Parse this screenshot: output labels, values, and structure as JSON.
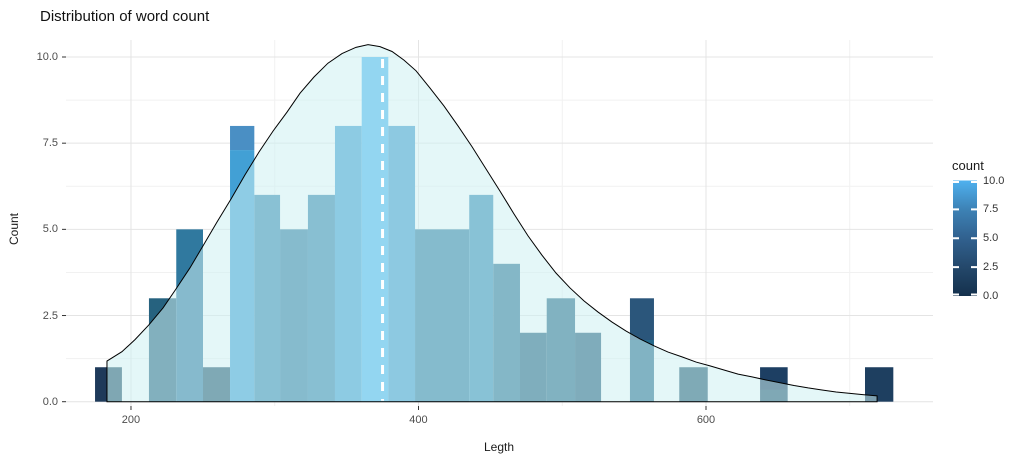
{
  "title": "Distribution of word count",
  "x_axis": {
    "title": "Legth",
    "domain": [
      154.8,
      757.9
    ],
    "ticks": [
      {
        "label": "200",
        "value": 200
      },
      {
        "label": "400",
        "value": 400
      },
      {
        "label": "600",
        "value": 600
      }
    ],
    "minor_ticks": [
      300,
      500,
      700
    ]
  },
  "y_axis": {
    "title": "Count",
    "domain": [
      0,
      10.0
    ],
    "ticks": [
      {
        "label": "0.0",
        "value": 0
      },
      {
        "label": "2.5",
        "value": 2.5
      },
      {
        "label": "5.0",
        "value": 5
      },
      {
        "label": "7.5",
        "value": 7.5
      },
      {
        "label": "10.0",
        "value": 10
      }
    ],
    "minor_ticks": [
      1.25,
      3.75,
      6.25,
      8.75
    ]
  },
  "legend": {
    "title": "count",
    "labels": [
      {
        "label": "10.0",
        "value": 10
      },
      {
        "label": "7.5",
        "value": 7.5
      },
      {
        "label": "5.0",
        "value": 5
      },
      {
        "label": "2.5",
        "value": 2.5
      },
      {
        "label": "0.0",
        "value": 0
      }
    ],
    "gradient_top_to_bottom": [
      "#4fb1ef",
      "#3d82b5",
      "#31618f",
      "#24486b",
      "#14304c"
    ]
  },
  "colors": {
    "background": "#ffffff",
    "grid_major": "#e4e4e4",
    "grid_minor": "#f1f1f1",
    "curve_stroke": "#000000",
    "curve_fill": "rgba(205,240,243,0.55)",
    "mean_line": "#ffffff",
    "tick_mark": "#333333"
  },
  "chart_data": {
    "type": "bar",
    "subtype": "histogram-with-density",
    "title": "Distribution of word count",
    "xlabel": "Legth",
    "ylabel": "Count",
    "xlim": [
      154.8,
      757.9
    ],
    "ylim": [
      0,
      10.5
    ],
    "mean_line_value": 375,
    "bins": [
      {
        "x0": 175.0,
        "x1": 183.3,
        "count": 1,
        "color": "#1e3a5a"
      },
      {
        "x0": 183.3,
        "x1": 193.7,
        "count": 1,
        "color": "#1f4e66"
      },
      {
        "x0": 212.5,
        "x1": 231.5,
        "count": 3,
        "color": "#26627f"
      },
      {
        "x0": 231.5,
        "x1": 250.1,
        "count": 5,
        "color": "#30799f"
      },
      {
        "x0": 250.1,
        "x1": 268.9,
        "count": 1,
        "color": "#20526b"
      },
      {
        "x0": 268.9,
        "x1": 285.8,
        "count": 8,
        "color": "#42a0d5",
        "color_top": "#4a8fc4",
        "split": 7.3
      },
      {
        "x0": 285.8,
        "x1": 303.7,
        "count": 6,
        "color": "#3587b0"
      },
      {
        "x0": 303.7,
        "x1": 323.1,
        "count": 5,
        "color": "#2f7aa1"
      },
      {
        "x0": 323.1,
        "x1": 341.9,
        "count": 6,
        "color": "#3384ac"
      },
      {
        "x0": 341.9,
        "x1": 360.5,
        "count": 8,
        "color": "#3f9dd1"
      },
      {
        "x0": 360.5,
        "x1": 379.0,
        "count": 10,
        "color": "#4cb5f0"
      },
      {
        "x0": 379.0,
        "x1": 397.6,
        "count": 8,
        "color": "#3f9acd"
      },
      {
        "x0": 397.6,
        "x1": 435.3,
        "count": 5,
        "color": "#2d7aa1"
      },
      {
        "x0": 435.3,
        "x1": 452.0,
        "count": 6,
        "color": "#348ab3"
      },
      {
        "x0": 452.0,
        "x1": 470.6,
        "count": 4,
        "color": "#2a7193"
      },
      {
        "x0": 470.6,
        "x1": 489.2,
        "count": 2,
        "color": "#215d7c"
      },
      {
        "x0": 489.2,
        "x1": 508.9,
        "count": 3,
        "color": "#256785"
      },
      {
        "x0": 508.9,
        "x1": 527.0,
        "count": 2,
        "color": "#1f5a78"
      },
      {
        "x0": 547.1,
        "x1": 563.8,
        "count": 3,
        "color": "#25688a",
        "color_top": "#2b567b",
        "split": 1.79
      },
      {
        "x0": 581.4,
        "x1": 601.2,
        "count": 1,
        "color": "#20566e"
      },
      {
        "x0": 637.6,
        "x1": 656.8,
        "count": 1,
        "color": "#21516b",
        "color_top": "#1d3f63",
        "split": 0.34
      },
      {
        "x0": 710.6,
        "x1": 730.3,
        "count": 1,
        "color": "#1e3f60"
      }
    ],
    "density_curve": [
      [
        183.3,
        1.18
      ],
      [
        193.7,
        1.45
      ],
      [
        202.8,
        1.8
      ],
      [
        212.5,
        2.23
      ],
      [
        222.3,
        2.72
      ],
      [
        231.3,
        3.27
      ],
      [
        241.0,
        3.88
      ],
      [
        250.1,
        4.52
      ],
      [
        259.8,
        5.21
      ],
      [
        269.6,
        5.88
      ],
      [
        279.3,
        6.58
      ],
      [
        289.0,
        7.24
      ],
      [
        298.8,
        7.85
      ],
      [
        308.5,
        8.4
      ],
      [
        317.6,
        8.95
      ],
      [
        327.3,
        9.42
      ],
      [
        337.0,
        9.82
      ],
      [
        346.8,
        10.1
      ],
      [
        356.5,
        10.28
      ],
      [
        364.9,
        10.36
      ],
      [
        373.2,
        10.3
      ],
      [
        381.6,
        10.16
      ],
      [
        389.9,
        9.91
      ],
      [
        398.3,
        9.6
      ],
      [
        408.0,
        9.1
      ],
      [
        417.7,
        8.58
      ],
      [
        427.5,
        8.0
      ],
      [
        437.2,
        7.4
      ],
      [
        447.0,
        6.75
      ],
      [
        456.7,
        6.11
      ],
      [
        466.4,
        5.45
      ],
      [
        476.2,
        4.81
      ],
      [
        485.9,
        4.25
      ],
      [
        495.7,
        3.73
      ],
      [
        505.4,
        3.3
      ],
      [
        515.2,
        2.92
      ],
      [
        524.9,
        2.6
      ],
      [
        534.6,
        2.31
      ],
      [
        544.4,
        2.05
      ],
      [
        554.1,
        1.82
      ],
      [
        563.8,
        1.62
      ],
      [
        573.6,
        1.44
      ],
      [
        583.3,
        1.3
      ],
      [
        593.1,
        1.15
      ],
      [
        602.8,
        1.04
      ],
      [
        612.5,
        0.92
      ],
      [
        622.3,
        0.8
      ],
      [
        632.0,
        0.72
      ],
      [
        641.8,
        0.63
      ],
      [
        651.5,
        0.55
      ],
      [
        661.2,
        0.47
      ],
      [
        671.0,
        0.4
      ],
      [
        680.7,
        0.34
      ],
      [
        690.5,
        0.28
      ],
      [
        700.2,
        0.24
      ],
      [
        709.9,
        0.2
      ],
      [
        719.0,
        0.17
      ]
    ]
  }
}
